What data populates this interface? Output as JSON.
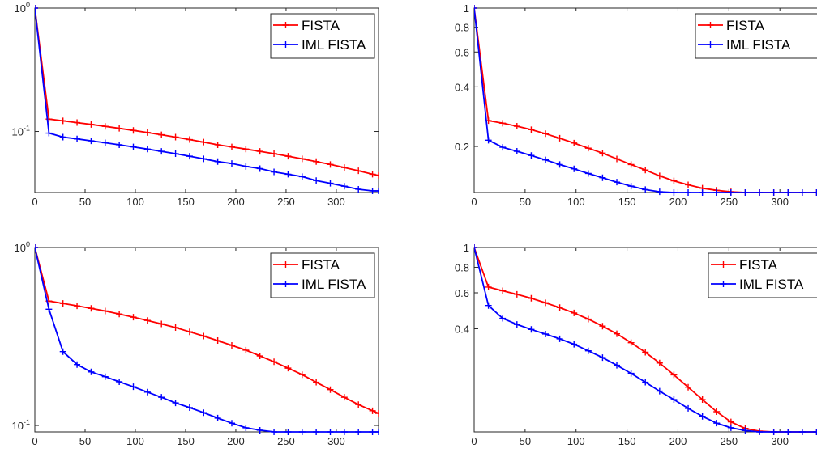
{
  "chart_data": [
    {
      "type": "line",
      "title": "",
      "xlabel": "",
      "ylabel": "",
      "xlim": [
        0,
        342
      ],
      "ylim": [
        0.032,
        1
      ],
      "yscale": "log",
      "grid": false,
      "legend_position": "top-right",
      "x_ticks": [
        "0",
        "50",
        "100",
        "150",
        "200",
        "250",
        "300"
      ],
      "y_ticks": [
        {
          "value": 0.1,
          "base": "10",
          "exp": "-1"
        },
        {
          "value": 1,
          "base": "10",
          "exp": "0"
        }
      ],
      "x": [
        0,
        14,
        28,
        42,
        56,
        70,
        84,
        98,
        112,
        126,
        140,
        154,
        168,
        182,
        196,
        210,
        224,
        238,
        252,
        266,
        280,
        294,
        308,
        322,
        336,
        342
      ],
      "series": [
        {
          "name": "FISTA",
          "color": "#ff0000",
          "values": [
            1.0,
            0.126,
            0.122,
            0.118,
            0.114,
            0.11,
            0.106,
            0.102,
            0.098,
            0.094,
            0.09,
            0.086,
            0.082,
            0.078,
            0.075,
            0.072,
            0.069,
            0.066,
            0.063,
            0.06,
            0.057,
            0.054,
            0.051,
            0.048,
            0.045,
            0.044
          ]
        },
        {
          "name": "IML FISTA",
          "color": "#0000ff",
          "values": [
            1.0,
            0.097,
            0.09,
            0.087,
            0.084,
            0.081,
            0.078,
            0.075,
            0.072,
            0.069,
            0.066,
            0.063,
            0.06,
            0.057,
            0.055,
            0.052,
            0.05,
            0.047,
            0.045,
            0.043,
            0.04,
            0.038,
            0.036,
            0.034,
            0.033,
            0.033
          ]
        }
      ]
    },
    {
      "type": "line",
      "title": "",
      "xlabel": "",
      "ylabel": "",
      "xlim": [
        0,
        342
      ],
      "ylim": [
        0.117,
        1
      ],
      "yscale": "log",
      "grid": false,
      "legend_position": "top-right",
      "x_ticks": [
        "0",
        "50",
        "100",
        "150",
        "200",
        "250",
        "300"
      ],
      "y_ticks": [
        {
          "value": 0.2,
          "label": "0.2"
        },
        {
          "value": 0.4,
          "label": "0.4"
        },
        {
          "value": 0.6,
          "label": "0.6"
        },
        {
          "value": 0.8,
          "label": "0.8"
        },
        {
          "value": 1,
          "label": "1"
        }
      ],
      "x": [
        0,
        14,
        28,
        42,
        56,
        70,
        84,
        98,
        112,
        126,
        140,
        154,
        168,
        182,
        196,
        210,
        224,
        238,
        252,
        266,
        280,
        294,
        308,
        322,
        336,
        342
      ],
      "series": [
        {
          "name": "FISTA",
          "color": "#ff0000",
          "values": [
            1.0,
            0.27,
            0.262,
            0.253,
            0.243,
            0.232,
            0.22,
            0.208,
            0.196,
            0.185,
            0.173,
            0.162,
            0.152,
            0.142,
            0.134,
            0.128,
            0.123,
            0.12,
            0.118,
            0.117,
            0.117,
            0.117,
            0.117,
            0.117,
            0.117,
            0.117
          ]
        },
        {
          "name": "IML FISTA",
          "color": "#0000ff",
          "values": [
            1.0,
            0.215,
            0.198,
            0.189,
            0.18,
            0.171,
            0.162,
            0.154,
            0.146,
            0.139,
            0.132,
            0.126,
            0.121,
            0.118,
            0.117,
            0.117,
            0.117,
            0.117,
            0.117,
            0.117,
            0.117,
            0.117,
            0.117,
            0.117,
            0.117,
            0.117
          ]
        }
      ]
    },
    {
      "type": "line",
      "title": "",
      "xlabel": "",
      "ylabel": "",
      "xlim": [
        0,
        342
      ],
      "ylim": [
        0.092,
        1
      ],
      "yscale": "log",
      "grid": false,
      "legend_position": "top-right",
      "x_ticks": [
        "0",
        "50",
        "100",
        "150",
        "200",
        "250",
        "300"
      ],
      "y_ticks": [
        {
          "value": 0.1,
          "base": "10",
          "exp": "-1"
        },
        {
          "value": 1,
          "base": "10",
          "exp": "0"
        }
      ],
      "x": [
        0,
        14,
        28,
        42,
        56,
        70,
        84,
        98,
        112,
        126,
        140,
        154,
        168,
        182,
        196,
        210,
        224,
        238,
        252,
        266,
        280,
        294,
        308,
        322,
        336,
        342
      ],
      "series": [
        {
          "name": "FISTA",
          "color": "#ff0000",
          "values": [
            1.0,
            0.5,
            0.485,
            0.47,
            0.455,
            0.44,
            0.423,
            0.406,
            0.389,
            0.372,
            0.355,
            0.336,
            0.318,
            0.3,
            0.282,
            0.265,
            0.246,
            0.228,
            0.21,
            0.193,
            0.175,
            0.159,
            0.144,
            0.131,
            0.121,
            0.117
          ]
        },
        {
          "name": "IML FISTA",
          "color": "#0000ff",
          "values": [
            1.0,
            0.45,
            0.26,
            0.22,
            0.2,
            0.188,
            0.176,
            0.165,
            0.154,
            0.144,
            0.134,
            0.126,
            0.118,
            0.11,
            0.103,
            0.097,
            0.094,
            0.092,
            0.092,
            0.092,
            0.092,
            0.092,
            0.092,
            0.092,
            0.092,
            0.092
          ]
        }
      ]
    },
    {
      "type": "line",
      "title": "",
      "xlabel": "",
      "ylabel": "",
      "xlim": [
        0,
        342
      ],
      "ylim": [
        0.125,
        1
      ],
      "yscale": "log",
      "grid": false,
      "legend_position": "top-right",
      "x_ticks": [
        "0",
        "50",
        "100",
        "150",
        "200",
        "250",
        "300"
      ],
      "y_ticks": [
        {
          "value": 0.4,
          "label": "0.4"
        },
        {
          "value": 0.6,
          "label": "0.6"
        },
        {
          "value": 0.8,
          "label": "0.8"
        },
        {
          "value": 1,
          "label": "1"
        }
      ],
      "x": [
        0,
        14,
        28,
        42,
        56,
        70,
        84,
        98,
        112,
        126,
        140,
        154,
        168,
        182,
        196,
        210,
        224,
        238,
        252,
        266,
        280,
        294,
        308,
        322,
        336,
        342
      ],
      "series": [
        {
          "name": "FISTA",
          "color": "#ff0000",
          "values": [
            1.0,
            0.64,
            0.614,
            0.59,
            0.564,
            0.536,
            0.508,
            0.478,
            0.446,
            0.412,
            0.378,
            0.342,
            0.307,
            0.272,
            0.238,
            0.207,
            0.18,
            0.157,
            0.14,
            0.13,
            0.126,
            0.125,
            0.125,
            0.125,
            0.125,
            0.125
          ]
        },
        {
          "name": "IML FISTA",
          "color": "#0000ff",
          "values": [
            1.0,
            0.52,
            0.45,
            0.42,
            0.397,
            0.377,
            0.357,
            0.336,
            0.312,
            0.289,
            0.265,
            0.242,
            0.219,
            0.198,
            0.18,
            0.163,
            0.149,
            0.138,
            0.131,
            0.127,
            0.125,
            0.125,
            0.125,
            0.125,
            0.125,
            0.125
          ]
        }
      ]
    }
  ]
}
